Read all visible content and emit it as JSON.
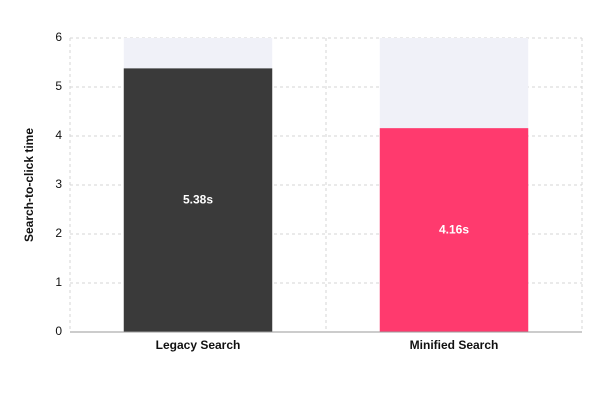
{
  "chart_data": {
    "type": "bar",
    "y_label": "Search-to-click time",
    "categories": [
      "Legacy Search",
      "Minified Search"
    ],
    "values": [
      5.38,
      4.16
    ],
    "value_labels": [
      "5.38s",
      "4.16s"
    ],
    "colors": [
      "#3a3a3a",
      "#ff3a6e"
    ],
    "ylim": [
      0,
      6
    ],
    "yticks": [
      0,
      1,
      2,
      3,
      4,
      5,
      6
    ],
    "grid": true
  }
}
